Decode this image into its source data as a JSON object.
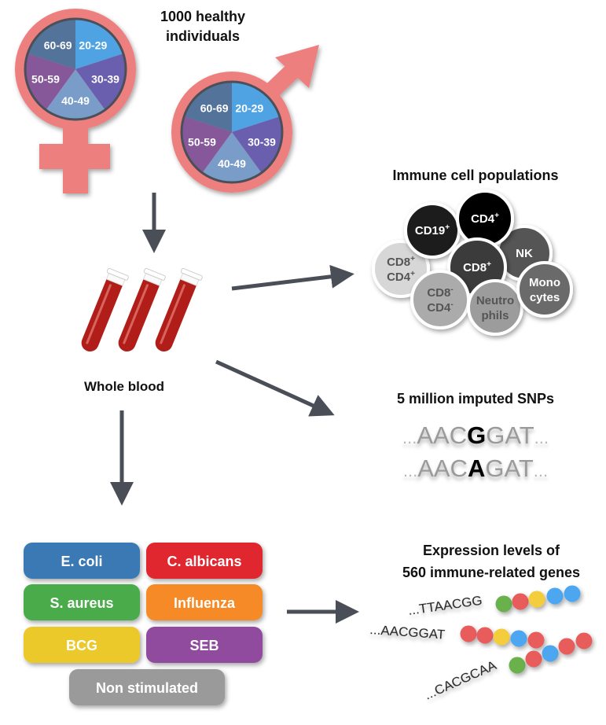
{
  "header": {
    "line1": "1000 healthy",
    "line2": "individuals"
  },
  "age_groups": [
    "20-29",
    "30-39",
    "40-49",
    "50-59",
    "60-69"
  ],
  "age_colors": [
    "#4fa3e3",
    "#6a5fae",
    "#7a9cc9",
    "#86589a",
    "#54739a"
  ],
  "symbol_color": "#ee7f7f",
  "blood": {
    "label": "Whole blood"
  },
  "immune": {
    "title": "Immune cell populations",
    "cells": [
      {
        "l1": "CD8",
        "s1": "+",
        "l2": "CD4",
        "s2": "+",
        "color": "#d7d7d7"
      },
      {
        "l1": "CD19",
        "s1": "+",
        "color": "#1e1e1e"
      },
      {
        "l1": "NK",
        "color": "#555555"
      },
      {
        "l1": "CD4",
        "s1": "+",
        "color": "#000000"
      },
      {
        "l1": "CD8",
        "s1": "+",
        "color": "#3a3a3a"
      },
      {
        "l1": "CD8",
        "s1": "-",
        "l2": "CD4",
        "s2": "-",
        "color": "#ababab"
      },
      {
        "l1": "Neutro",
        "l2": "phils",
        "color": "#9c9c9c"
      },
      {
        "l1": "Mono",
        "l2": "cytes",
        "color": "#6b6b6b"
      }
    ]
  },
  "snps": {
    "title": "5 million imputed SNPs",
    "ellipsis": "...",
    "rows": [
      {
        "prefix": "AAC",
        "allele": "G",
        "suffix": "GAT"
      },
      {
        "prefix": "AAC",
        "allele": "A",
        "suffix": "GAT"
      }
    ]
  },
  "stimuli": [
    {
      "label": "E. coli",
      "color": "#3a79b5"
    },
    {
      "label": "C. albicans",
      "color": "#e0282d"
    },
    {
      "label": "S. aureus",
      "color": "#4aab48"
    },
    {
      "label": "Influenza",
      "color": "#f58a27"
    },
    {
      "label": "BCG",
      "color": "#ebc92a"
    },
    {
      "label": "SEB",
      "color": "#914b9e"
    },
    {
      "label": "Non stimulated",
      "color": "#9a9a9a"
    }
  ],
  "expression": {
    "line1": "Expression levels of",
    "line2": "560 immune-related genes",
    "sequences": [
      "...TTAACGG",
      "...AACGGAT",
      "...CACGCAA"
    ],
    "beads": [
      [
        "#6ab04c",
        "#e85c5c",
        "#f3cd3a",
        "#4da6f0",
        "#4da6f0"
      ],
      [
        "#e85c5c",
        "#e85c5c",
        "#f3cd3a",
        "#4da6f0",
        "#e85c5c"
      ],
      [
        "#6ab04c",
        "#e85c5c",
        "#4da6f0",
        "#e85c5c",
        "#e85c5c"
      ]
    ]
  }
}
